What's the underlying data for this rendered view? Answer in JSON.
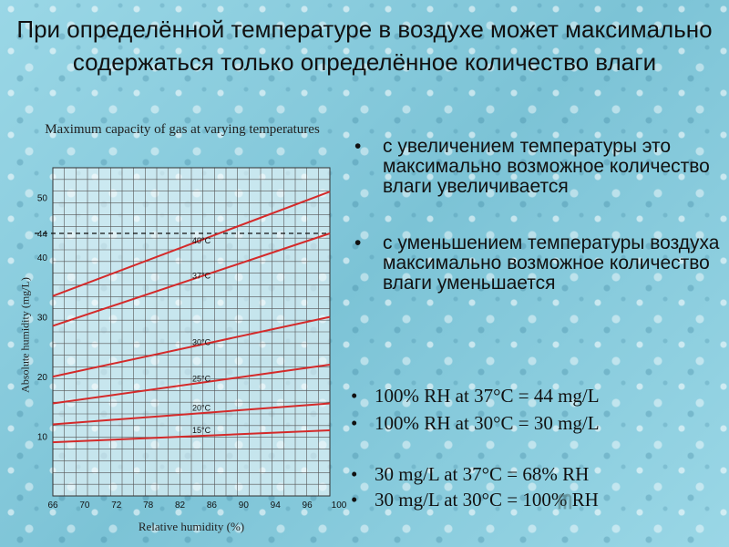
{
  "slide": {
    "title": "При определённой температуре в воздухе может максимально содержаться только определённое количество влаги",
    "bullets_ru": [
      "с увеличением температуры это максимально возможное количество влаги увеличивается",
      "с уменьшением температуры воздуха максимально возможное количество влаги уменьшается"
    ],
    "bullets_en": [
      "100% RH at 37°C = 44 mg/L",
      "100% RH at 30°C = 30 mg/L",
      "30 mg/L at 37°C = 68% RH",
      "30 mg/L at 30°C = 100% RH"
    ],
    "bullet_symbol": "•",
    "watermark": "ᗰ"
  },
  "chart_data": {
    "type": "line",
    "title": "Maximum capacity of gas at varying temperatures",
    "xlabel": "Relative humidity (%)",
    "ylabel": "Absolute humidity (mg/L)",
    "x_ticks": [
      "66",
      "70",
      "72",
      "78",
      "82",
      "86",
      "90",
      "94",
      "96",
      "100"
    ],
    "y_ticks": [
      "10",
      "20",
      "30",
      "40",
      "44",
      "50"
    ],
    "y_tick_values": [
      10,
      20,
      30,
      40,
      44,
      50
    ],
    "ylim": [
      0,
      55
    ],
    "reference_line": {
      "y": 44,
      "style": "dashed"
    },
    "grid": true,
    "line_color": "#d42a2a",
    "series": [
      {
        "name": "40°C",
        "x": [
          66,
          100
        ],
        "y": [
          33.5,
          51
        ]
      },
      {
        "name": "37°C",
        "x": [
          66,
          100
        ],
        "y": [
          28.5,
          44
        ]
      },
      {
        "name": "30°C",
        "x": [
          66,
          100
        ],
        "y": [
          20,
          30
        ]
      },
      {
        "name": "25°C",
        "x": [
          66,
          100
        ],
        "y": [
          15.5,
          22
        ]
      },
      {
        "name": "20°C",
        "x": [
          66,
          100
        ],
        "y": [
          12,
          15.5
        ]
      },
      {
        "name": "15°C",
        "x": [
          66,
          100
        ],
        "y": [
          9,
          11
        ]
      }
    ]
  }
}
